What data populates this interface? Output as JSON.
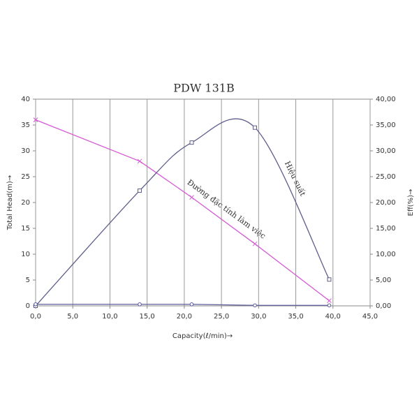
{
  "chart_data": {
    "type": "line",
    "title": "PDW 131B",
    "xlabel": "Capacity(ℓ/min)→",
    "ylabel": "Total Head(m)→",
    "y2label": "Eff(%)→",
    "annotations": [
      "Hiệu suất",
      "Đường đặc tính làm việc"
    ],
    "x": [
      0,
      14,
      21,
      29.5,
      39.5
    ],
    "series": [
      {
        "color": "#d45ad4",
        "marker": "x",
        "smooth": false,
        "axis": "y",
        "values": [
          36,
          28,
          21,
          12,
          1
        ]
      },
      {
        "color": "#5e5e8c",
        "marker": "square",
        "smooth": true,
        "axis": "y2",
        "values": [
          0,
          22.3,
          31.6,
          34.5,
          5.1
        ]
      },
      {
        "color": "#5e5e9c",
        "marker": "circle",
        "smooth": false,
        "axis": "y",
        "values": [
          0.3,
          0.3,
          0.3,
          0.1,
          0.1
        ]
      }
    ],
    "xlim": [
      0,
      45
    ],
    "xticks": [
      {
        "value": 0,
        "label": "0,0"
      },
      {
        "value": 5,
        "label": "5,0"
      },
      {
        "value": 10,
        "label": "10,0"
      },
      {
        "value": 15,
        "label": "15,0"
      },
      {
        "value": 20,
        "label": "20,0"
      },
      {
        "value": 25,
        "label": "25,0"
      },
      {
        "value": 30,
        "label": "30,0"
      },
      {
        "value": 35,
        "label": "35,0"
      },
      {
        "value": 40,
        "label": "40,0"
      },
      {
        "value": 45,
        "label": "45,0"
      }
    ],
    "ylim": [
      0,
      40
    ],
    "yticks": [
      0,
      5,
      10,
      15,
      20,
      25,
      30,
      35,
      40
    ],
    "y2lim": [
      0,
      40
    ],
    "y2ticks": [
      {
        "value": 0,
        "label": "0,00"
      },
      {
        "value": 5,
        "label": "5,00"
      },
      {
        "value": 10,
        "label": "10,00"
      },
      {
        "value": 15,
        "label": "15,00"
      },
      {
        "value": 20,
        "label": "20,00"
      },
      {
        "value": 25,
        "label": "25,00"
      },
      {
        "value": 30,
        "label": "30,00"
      },
      {
        "value": 35,
        "label": "35,00"
      },
      {
        "value": 40,
        "label": "40,00"
      }
    ],
    "grid": "x"
  }
}
